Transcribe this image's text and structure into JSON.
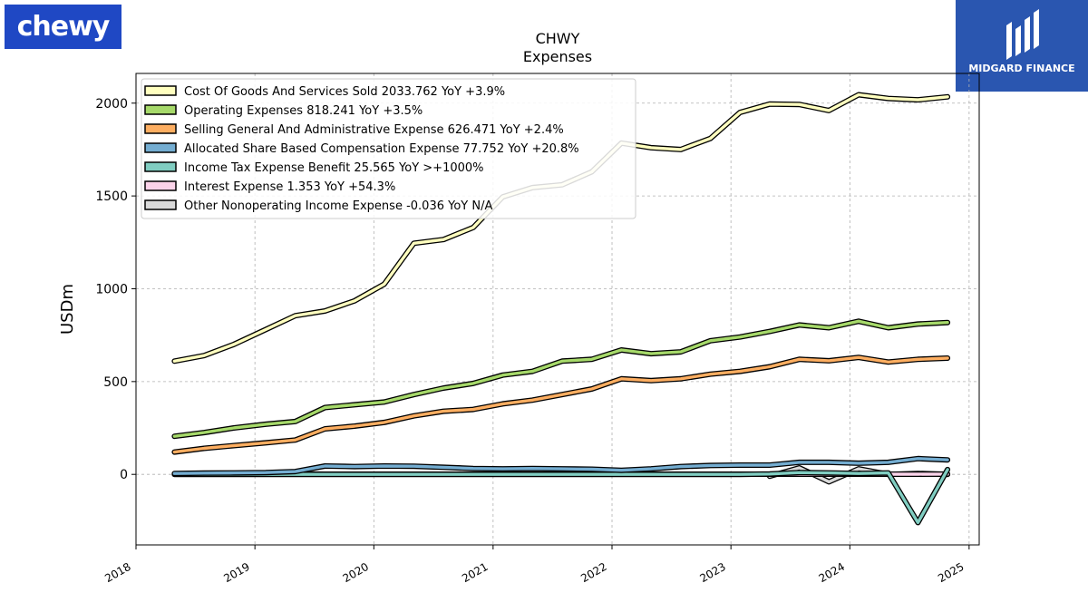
{
  "branding": {
    "left_logo_text": "chewy",
    "right_logo_text": "MIDGARD FINANCE",
    "left_logo_color": "#1f48c4",
    "right_logo_color": "#2a56b0"
  },
  "chart_data": {
    "type": "line",
    "title": "CHWY",
    "subtitle": "Expenses",
    "ylabel": "USDm",
    "xlabel": "",
    "ylim": [
      -380,
      2160
    ],
    "xlim": [
      "2018-01-01",
      "2025-02-01"
    ],
    "yticks": [
      0,
      500,
      1000,
      1500,
      2000
    ],
    "xticks": [
      "2018",
      "2019",
      "2020",
      "2021",
      "2022",
      "2023",
      "2024",
      "2025"
    ],
    "grid": true,
    "legend_position": "top-left",
    "series": [
      {
        "name": "Cost Of Goods And Services Sold",
        "legend": "Cost Of Goods And Services Sold  2033.762 YoY +3.9%",
        "color": "#ffffbf",
        "x": [
          "2018-04-29",
          "2018-07-29",
          "2018-10-28",
          "2019-02-03",
          "2019-05-05",
          "2019-08-04",
          "2019-11-03",
          "2020-02-02",
          "2020-05-03",
          "2020-08-02",
          "2020-11-01",
          "2021-01-31",
          "2021-05-02",
          "2021-08-01",
          "2021-10-31",
          "2022-01-30",
          "2022-05-01",
          "2022-07-31",
          "2022-10-30",
          "2023-01-29",
          "2023-04-30",
          "2023-07-30",
          "2023-10-29",
          "2024-01-28",
          "2024-04-28",
          "2024-07-28",
          "2024-10-27"
        ],
        "values": [
          610,
          640,
          700,
          780,
          855,
          880,
          935,
          1025,
          1245,
          1265,
          1330,
          1495,
          1545,
          1560,
          1630,
          1785,
          1760,
          1750,
          1810,
          1950,
          1995,
          1993,
          1960,
          2045,
          2025,
          2018,
          2034
        ]
      },
      {
        "name": "Operating Expenses",
        "legend": "Operating Expenses  818.241 YoY +3.5%",
        "color": "#a6d96a",
        "x": [
          "2018-04-29",
          "2018-07-29",
          "2018-10-28",
          "2019-02-03",
          "2019-05-05",
          "2019-08-04",
          "2019-11-03",
          "2020-02-02",
          "2020-05-03",
          "2020-08-02",
          "2020-11-01",
          "2021-01-31",
          "2021-05-02",
          "2021-08-01",
          "2021-10-31",
          "2022-01-30",
          "2022-05-01",
          "2022-07-31",
          "2022-10-30",
          "2023-01-29",
          "2023-04-30",
          "2023-07-30",
          "2023-10-29",
          "2024-01-28",
          "2024-04-28",
          "2024-07-28",
          "2024-10-27"
        ],
        "values": [
          205,
          225,
          250,
          270,
          285,
          360,
          375,
          390,
          430,
          465,
          490,
          535,
          555,
          610,
          620,
          670,
          650,
          660,
          720,
          740,
          770,
          805,
          790,
          825,
          790,
          810,
          818
        ]
      },
      {
        "name": "Selling General And Administrative Expense",
        "legend": "Selling General And Administrative Expense  626.471 YoY +2.4%",
        "color": "#fdae61",
        "x": [
          "2018-04-29",
          "2018-07-29",
          "2018-10-28",
          "2019-02-03",
          "2019-05-05",
          "2019-08-04",
          "2019-11-03",
          "2020-02-02",
          "2020-05-03",
          "2020-08-02",
          "2020-11-01",
          "2021-01-31",
          "2021-05-02",
          "2021-08-01",
          "2021-10-31",
          "2022-01-30",
          "2022-05-01",
          "2022-07-31",
          "2022-10-30",
          "2023-01-29",
          "2023-04-30",
          "2023-07-30",
          "2023-10-29",
          "2024-01-28",
          "2024-04-28",
          "2024-07-28",
          "2024-10-27"
        ],
        "values": [
          120,
          140,
          155,
          170,
          185,
          245,
          260,
          280,
          315,
          340,
          350,
          380,
          400,
          430,
          460,
          515,
          505,
          515,
          540,
          555,
          580,
          620,
          612,
          630,
          605,
          620,
          626
        ]
      },
      {
        "name": "Allocated Share Based Compensation Expense",
        "legend": "Allocated Share Based Compensation Expense  77.752 YoY +20.8%",
        "color": "#74add1",
        "x": [
          "2018-04-29",
          "2018-07-29",
          "2018-10-28",
          "2019-02-03",
          "2019-05-05",
          "2019-08-04",
          "2019-11-03",
          "2020-02-02",
          "2020-05-03",
          "2020-08-02",
          "2020-11-01",
          "2021-01-31",
          "2021-05-02",
          "2021-08-01",
          "2021-10-31",
          "2022-01-30",
          "2022-05-01",
          "2022-07-31",
          "2022-10-30",
          "2023-01-29",
          "2023-04-30",
          "2023-07-30",
          "2023-10-29",
          "2024-01-28",
          "2024-04-28",
          "2024-07-28",
          "2024-10-27"
        ],
        "values": [
          5,
          7,
          8,
          10,
          15,
          45,
          42,
          45,
          44,
          38,
          32,
          30,
          32,
          30,
          28,
          22,
          30,
          42,
          48,
          50,
          50,
          65,
          65,
          60,
          65,
          85,
          78
        ]
      },
      {
        "name": "Income Tax Expense Benefit",
        "legend": "Income Tax Expense Benefit  25.565 YoY >+1000%",
        "color": "#80cdc1",
        "x": [
          "2018-04-29",
          "2018-07-29",
          "2018-10-28",
          "2019-02-03",
          "2019-05-05",
          "2019-08-04",
          "2019-11-03",
          "2020-02-02",
          "2020-05-03",
          "2020-08-02",
          "2020-11-01",
          "2021-01-31",
          "2021-05-02",
          "2021-08-01",
          "2021-10-31",
          "2022-01-30",
          "2022-05-01",
          "2022-07-31",
          "2022-10-30",
          "2023-01-29",
          "2023-04-30",
          "2023-07-30",
          "2023-10-29",
          "2024-01-28",
          "2024-04-28",
          "2024-07-28",
          "2024-10-27"
        ],
        "values": [
          0,
          0,
          0,
          0,
          0,
          0,
          0,
          0,
          0,
          0,
          0,
          0,
          0,
          0,
          0,
          0,
          0,
          0,
          0,
          0,
          2,
          10,
          8,
          5,
          8,
          -260,
          26
        ]
      },
      {
        "name": "Interest Expense",
        "legend": "Interest Expense  1.353 YoY +54.3%",
        "color": "#fbd3e9",
        "x": [
          "2018-04-29",
          "2018-07-29",
          "2018-10-28",
          "2019-02-03",
          "2019-05-05",
          "2019-08-04",
          "2019-11-03",
          "2020-02-02",
          "2020-05-03",
          "2020-08-02",
          "2020-11-01",
          "2021-01-31",
          "2021-05-02",
          "2021-08-01",
          "2021-10-31",
          "2022-01-30",
          "2022-05-01",
          "2022-07-31",
          "2022-10-30",
          "2023-01-29",
          "2023-04-30",
          "2023-07-30",
          "2023-10-29",
          "2024-01-28",
          "2024-04-28",
          "2024-07-28",
          "2024-10-27"
        ],
        "values": [
          3,
          3,
          3,
          3,
          3,
          1,
          1,
          1,
          1,
          1,
          1,
          1,
          1,
          1,
          1,
          1,
          1,
          1,
          1,
          1,
          1,
          1,
          1,
          1,
          1,
          1,
          1.4
        ]
      },
      {
        "name": "Other Nonoperating Income Expense",
        "legend": "Other Nonoperating Income Expense  -0.036 YoY N/A",
        "color": "#d9d9d9",
        "x": [
          "2023-04-30",
          "2023-07-30",
          "2023-10-29",
          "2024-01-28",
          "2024-04-28",
          "2024-07-28",
          "2024-10-27"
        ],
        "values": [
          -10,
          35,
          -40,
          30,
          0,
          5,
          0
        ]
      }
    ]
  }
}
